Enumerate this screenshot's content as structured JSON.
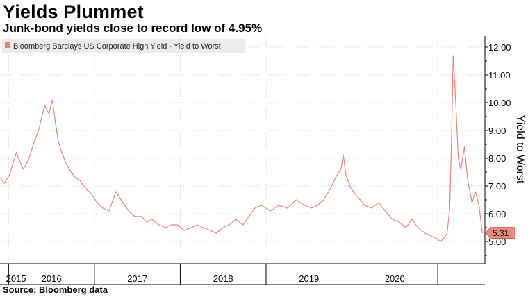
{
  "chart_data": {
    "type": "line",
    "title": "Yields Plummet",
    "subtitle": "Junk-bond yields close to record low of 4.95%",
    "ylabel": "Yield to Worst",
    "xlabel": "",
    "source": "Source: Bloomberg data",
    "legend": {
      "entry": "Bloomberg Barclays US Corporate High Yield - Yield to Worst",
      "placement": "top-left"
    },
    "series_color": "#e8837b",
    "callout_color": "#f08a80",
    "grid": true,
    "ylim": [
      4.2,
      12.4
    ],
    "xlim": [
      2014.95,
      2020.6
    ],
    "y_ticks": [
      5.0,
      6.0,
      7.0,
      8.0,
      9.0,
      10.0,
      11.0,
      12.0
    ],
    "y_tick_labels": [
      "5.00",
      "6.00",
      "7.00",
      "8.00",
      "9.00",
      "10.00",
      "11.00",
      "12.00"
    ],
    "x_tick_labels": [
      "2015",
      "2016",
      "2017",
      "2018",
      "2019",
      "2020"
    ],
    "x_tick_positions": [
      2015.0,
      2016.0,
      2017.0,
      2018.0,
      2019.0,
      2020.0
    ],
    "x_label_positions": [
      2015.02,
      2015.55,
      2016.55,
      2017.55,
      2018.55,
      2019.55
    ],
    "year_boundaries": [
      2015.05,
      2016.05,
      2017.05,
      2018.05,
      2019.05,
      2020.05
    ],
    "last_value": 5.31,
    "last_value_label": "5.31",
    "series": [
      {
        "name": "Bloomberg Barclays US Corporate High Yield - Yield to Worst",
        "x": [
          2014.95,
          2015.0,
          2015.06,
          2015.1,
          2015.14,
          2015.18,
          2015.22,
          2015.26,
          2015.3,
          2015.35,
          2015.4,
          2015.43,
          2015.47,
          2015.52,
          2015.56,
          2015.6,
          2015.63,
          2015.66,
          2015.72,
          2015.78,
          2015.83,
          2015.88,
          2015.95,
          2016.02,
          2016.08,
          2016.15,
          2016.22,
          2016.3,
          2016.38,
          2016.45,
          2016.52,
          2016.6,
          2016.66,
          2016.72,
          2016.8,
          2016.88,
          2016.95,
          2017.02,
          2017.1,
          2017.18,
          2017.25,
          2017.32,
          2017.4,
          2017.47,
          2017.55,
          2017.62,
          2017.7,
          2017.78,
          2017.85,
          2017.92,
          2018.0,
          2018.1,
          2018.2,
          2018.3,
          2018.4,
          2018.5,
          2018.58,
          2018.65,
          2018.72,
          2018.8,
          2018.86,
          2018.92,
          2018.95,
          2018.98,
          2019.04,
          2019.12,
          2019.2,
          2019.28,
          2019.36,
          2019.44,
          2019.52,
          2019.6,
          2019.68,
          2019.75,
          2019.82,
          2019.9,
          2019.97,
          2020.04,
          2020.08,
          2020.12,
          2020.16,
          2020.19,
          2020.21,
          2020.23,
          2020.26,
          2020.29,
          2020.32,
          2020.36,
          2020.4,
          2020.45,
          2020.49,
          2020.53,
          2020.57
        ],
        "values": [
          7.3,
          7.1,
          7.4,
          7.8,
          8.2,
          7.9,
          7.6,
          7.8,
          8.1,
          8.6,
          9.0,
          9.4,
          9.9,
          9.6,
          10.1,
          9.2,
          8.6,
          8.3,
          7.8,
          7.5,
          7.3,
          7.2,
          6.9,
          6.7,
          6.4,
          6.2,
          6.1,
          6.8,
          6.4,
          6.1,
          5.9,
          5.9,
          5.7,
          5.8,
          5.6,
          5.5,
          5.6,
          5.6,
          5.4,
          5.5,
          5.6,
          5.5,
          5.4,
          5.3,
          5.5,
          5.6,
          5.8,
          5.6,
          5.9,
          6.2,
          6.3,
          6.1,
          6.3,
          6.2,
          6.5,
          6.3,
          6.2,
          6.3,
          6.5,
          6.9,
          7.3,
          7.6,
          8.1,
          7.4,
          6.9,
          6.6,
          6.3,
          6.2,
          6.4,
          6.1,
          5.8,
          5.7,
          5.5,
          5.8,
          5.5,
          5.3,
          5.2,
          5.1,
          5.0,
          5.1,
          5.3,
          6.2,
          8.5,
          11.7,
          10.0,
          8.0,
          7.6,
          8.4,
          7.2,
          6.4,
          6.8,
          6.3,
          5.3
        ]
      }
    ]
  }
}
